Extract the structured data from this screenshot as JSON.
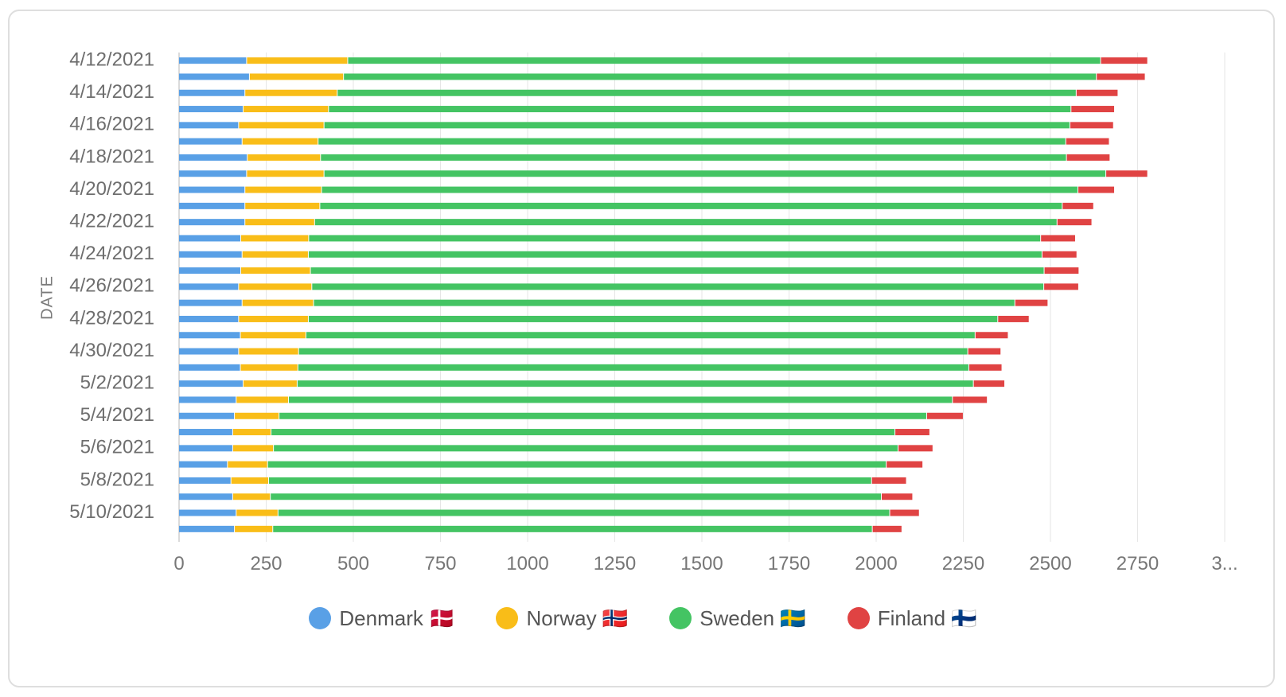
{
  "chart_data": {
    "type": "bar",
    "orientation": "horizontal",
    "stacked": true,
    "ylabel": "DATE",
    "xlabel": "",
    "xlim": [
      0,
      3000
    ],
    "x_ticks": [
      "0",
      "250",
      "500",
      "750",
      "1000",
      "1250",
      "1500",
      "1750",
      "2000",
      "2250",
      "2500",
      "2750",
      "3..."
    ],
    "categories": [
      "4/12/2021",
      "4/13/2021",
      "4/14/2021",
      "4/15/2021",
      "4/16/2021",
      "4/17/2021",
      "4/18/2021",
      "4/19/2021",
      "4/20/2021",
      "4/21/2021",
      "4/22/2021",
      "4/23/2021",
      "4/24/2021",
      "4/25/2021",
      "4/26/2021",
      "4/27/2021",
      "4/28/2021",
      "4/29/2021",
      "4/30/2021",
      "5/1/2021",
      "5/2/2021",
      "5/3/2021",
      "5/4/2021",
      "5/5/2021",
      "5/6/2021",
      "5/7/2021",
      "5/8/2021",
      "5/9/2021",
      "5/10/2021",
      "5/11/2021"
    ],
    "category_labels_shown": [
      "4/12/2021",
      "",
      "4/14/2021",
      "",
      "4/16/2021",
      "",
      "4/18/2021",
      "",
      "4/20/2021",
      "",
      "4/22/2021",
      "",
      "4/24/2021",
      "",
      "4/26/2021",
      "",
      "4/28/2021",
      "",
      "4/30/2021",
      "",
      "5/2/2021",
      "",
      "5/4/2021",
      "",
      "5/6/2021",
      "",
      "5/8/2021",
      "",
      "5/10/2021",
      ""
    ],
    "series": [
      {
        "name": "Denmark 🇩🇰",
        "color": "#59a0e6",
        "values": [
          195,
          203,
          190,
          185,
          172,
          182,
          197,
          195,
          190,
          190,
          190,
          178,
          182,
          178,
          172,
          182,
          172,
          177,
          172,
          177,
          185,
          165,
          160,
          155,
          155,
          140,
          150,
          155,
          165,
          160
        ]
      },
      {
        "name": "Norway 🇳🇴",
        "color": "#f9bd18",
        "values": [
          290,
          270,
          265,
          245,
          245,
          218,
          210,
          222,
          220,
          215,
          200,
          195,
          190,
          200,
          210,
          205,
          200,
          188,
          172,
          165,
          155,
          150,
          128,
          110,
          117,
          115,
          108,
          108,
          120,
          110
        ]
      },
      {
        "name": "Sweden 🇸🇪",
        "color": "#44c463",
        "values": [
          2160,
          2160,
          2120,
          2130,
          2140,
          2145,
          2140,
          2243,
          2170,
          2130,
          2130,
          2100,
          2105,
          2105,
          2100,
          2012,
          1978,
          1920,
          1920,
          1925,
          1940,
          1905,
          1858,
          1790,
          1792,
          1775,
          1730,
          1753,
          1755,
          1720
        ]
      },
      {
        "name": "Finland 🇫🇮",
        "color": "#e04343",
        "values": [
          135,
          140,
          120,
          125,
          125,
          125,
          125,
          120,
          105,
          90,
          100,
          100,
          100,
          100,
          100,
          95,
          90,
          95,
          95,
          95,
          90,
          100,
          105,
          100,
          100,
          105,
          100,
          90,
          85,
          85
        ]
      }
    ],
    "legend_position": "bottom",
    "grid": true
  }
}
